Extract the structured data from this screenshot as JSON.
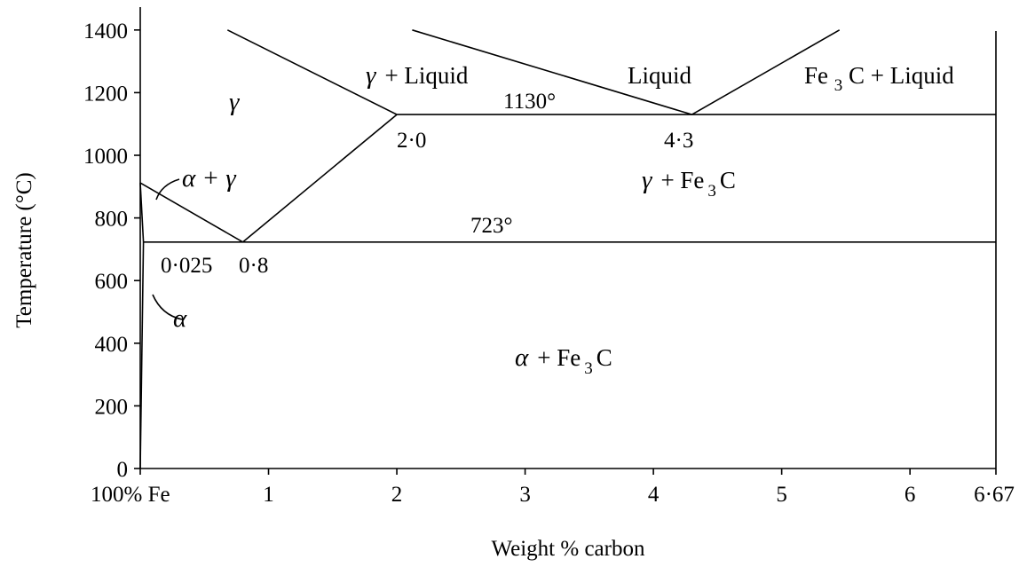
{
  "chart_data": {
    "type": "line",
    "xlabel": "Weight % carbon",
    "ylabel": "Temperature (°C)",
    "xlim": [
      0,
      6.67
    ],
    "ylim": [
      0,
      1450
    ],
    "x_ticks": [
      {
        "value": 0,
        "label": "100% Fe"
      },
      {
        "value": 1,
        "label": "1"
      },
      {
        "value": 2,
        "label": "2"
      },
      {
        "value": 3,
        "label": "3"
      },
      {
        "value": 4,
        "label": "4"
      },
      {
        "value": 5,
        "label": "5"
      },
      {
        "value": 6,
        "label": "6"
      },
      {
        "value": 6.67,
        "label": "6·67"
      }
    ],
    "y_ticks": [
      0,
      200,
      400,
      600,
      800,
      1000,
      1200,
      1400
    ],
    "lines": [
      {
        "name": "liquidus-gamma",
        "points": [
          [
            0.68,
            1400
          ],
          [
            2.0,
            1130
          ]
        ]
      },
      {
        "name": "liquidus-liquid-gamma",
        "points": [
          [
            2.12,
            1400
          ],
          [
            4.3,
            1130
          ]
        ]
      },
      {
        "name": "liquidus-fe3c",
        "points": [
          [
            4.3,
            1130
          ],
          [
            5.45,
            1400
          ]
        ]
      },
      {
        "name": "eutectic-isotherm",
        "points": [
          [
            2.0,
            1130
          ],
          [
            6.67,
            1130
          ]
        ]
      },
      {
        "name": "acm-line",
        "points": [
          [
            0.8,
            723
          ],
          [
            2.0,
            1130
          ]
        ]
      },
      {
        "name": "a3-line",
        "points": [
          [
            0,
            912
          ],
          [
            0.8,
            723
          ]
        ]
      },
      {
        "name": "alpha-boundary",
        "points": [
          [
            0,
            912
          ],
          [
            0.025,
            723
          ]
        ]
      },
      {
        "name": "eutectoid-isotherm",
        "points": [
          [
            0.025,
            723
          ],
          [
            6.67,
            723
          ]
        ]
      },
      {
        "name": "solvus-alpha",
        "points": [
          [
            0.025,
            723
          ],
          [
            0,
            0
          ]
        ]
      }
    ],
    "annotations": {
      "eutectic_temp": "1130°",
      "eutectoid_temp": "723°",
      "point_2_0": "2·0",
      "point_4_3": "4·3",
      "point_0_025": "0·025",
      "point_0_8": "0·8"
    },
    "regions": {
      "gamma": "γ",
      "gamma_liquid_greek": "γ",
      "gamma_liquid_text": "+ Liquid",
      "liquid": "Liquid",
      "fe3c_liquid_a": "Fe",
      "fe3c_liquid_sub": "3",
      "fe3c_liquid_b": "C + Liquid",
      "alpha_gamma": "α + γ",
      "gamma_fe3c_greek": "γ",
      "gamma_fe3c_a": "+ Fe",
      "gamma_fe3c_sub": "3",
      "gamma_fe3c_b": "C",
      "alpha": "α",
      "alpha_fe3c_greek": "α",
      "alpha_fe3c_a": "+ Fe",
      "alpha_fe3c_sub": "3",
      "alpha_fe3c_b": "C"
    }
  }
}
